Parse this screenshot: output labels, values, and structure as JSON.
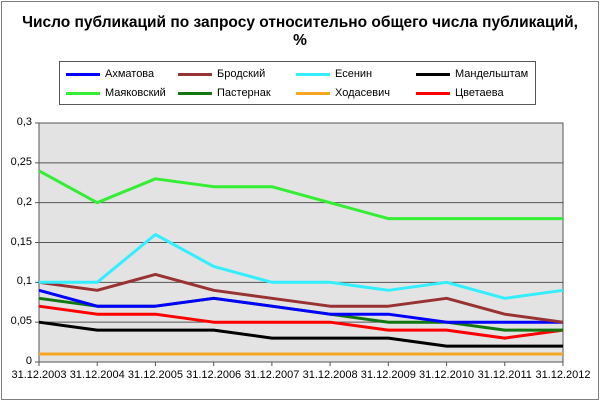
{
  "chart_data": {
    "type": "line",
    "title": "Число публикаций по запросу относительно общего числа публикаций, %",
    "title_line1": "Число публикаций по запросу относительно общего числа публикаций,",
    "title_line2": "%",
    "xlabel": "",
    "ylabel": "",
    "ylim": [
      0,
      0.3
    ],
    "yticks": [
      "0",
      "0,05",
      "0,1",
      "0,15",
      "0,2",
      "0,25",
      "0,3"
    ],
    "grid": true,
    "legend_position": "top",
    "categories": [
      "31.12.2003",
      "31.12.2004",
      "31.12.2005",
      "31.12.2006",
      "31.12.2007",
      "31.12.2008",
      "31.12.2009",
      "31.12.2010",
      "31.12.2011",
      "31.12.2012"
    ],
    "series": [
      {
        "name": "Ахматова",
        "color": "#0000ff",
        "values": [
          0.09,
          0.07,
          0.07,
          0.08,
          0.07,
          0.06,
          0.06,
          0.05,
          0.05,
          0.05
        ]
      },
      {
        "name": "Бродский",
        "color": "#993333",
        "values": [
          0.1,
          0.09,
          0.11,
          0.09,
          0.08,
          0.07,
          0.07,
          0.08,
          0.06,
          0.05
        ]
      },
      {
        "name": "Есенин",
        "color": "#33eeff",
        "values": [
          0.1,
          0.1,
          0.16,
          0.12,
          0.1,
          0.1,
          0.09,
          0.1,
          0.08,
          0.09
        ]
      },
      {
        "name": "Мандельштам",
        "color": "#000000",
        "values": [
          0.05,
          0.04,
          0.04,
          0.04,
          0.03,
          0.03,
          0.03,
          0.02,
          0.02,
          0.02
        ]
      },
      {
        "name": "Маяковский",
        "color": "#33ee33",
        "values": [
          0.24,
          0.2,
          0.23,
          0.22,
          0.22,
          0.2,
          0.18,
          0.18,
          0.18,
          0.18
        ]
      },
      {
        "name": "Пастернак",
        "color": "#117711",
        "values": [
          0.08,
          0.07,
          0.07,
          0.08,
          0.07,
          0.06,
          0.05,
          0.05,
          0.04,
          0.04
        ]
      },
      {
        "name": "Ходасевич",
        "color": "#f5a623",
        "values": [
          0.01,
          0.01,
          0.01,
          0.01,
          0.01,
          0.01,
          0.01,
          0.01,
          0.01,
          0.01
        ]
      },
      {
        "name": "Цветаева",
        "color": "#ff0000",
        "values": [
          0.07,
          0.06,
          0.06,
          0.05,
          0.05,
          0.05,
          0.04,
          0.04,
          0.03,
          0.04
        ]
      }
    ]
  },
  "colors": {
    "plot_background": "#e3e3e3",
    "gridline": "#555555",
    "axis": "#555555"
  }
}
